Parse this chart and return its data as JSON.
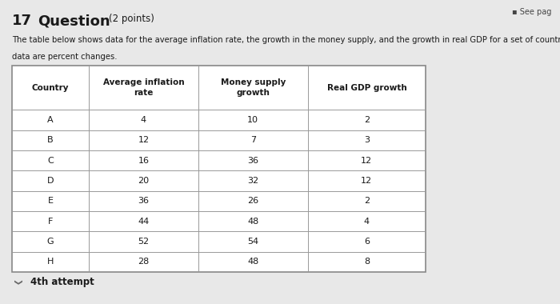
{
  "title_number": "17",
  "title_text": "Question",
  "title_points": "(2 points)",
  "description_line1": "The table below shows data for the average inflation rate, the growth in the money supply, and the growth in real GDP for a set of countries. A",
  "description_line2": "data are percent changes.",
  "col_headers": [
    "Country",
    "Average inflation\nrate",
    "Money supply\ngrowth",
    "Real GDP growth"
  ],
  "rows": [
    [
      "A",
      "4",
      "10",
      "2"
    ],
    [
      "B",
      "12",
      "7",
      "3"
    ],
    [
      "C",
      "16",
      "36",
      "12"
    ],
    [
      "D",
      "20",
      "32",
      "12"
    ],
    [
      "E",
      "36",
      "26",
      "2"
    ],
    [
      "F",
      "44",
      "48",
      "4"
    ],
    [
      "G",
      "52",
      "54",
      "6"
    ],
    [
      "H",
      "28",
      "48",
      "8"
    ]
  ],
  "footer_text": "4th attempt",
  "see_page_text": "See pag",
  "bg_color": "#e8e8e8",
  "text_color": "#1a1a1a",
  "table_border_color": "#888888",
  "table_bg": "#ffffff"
}
